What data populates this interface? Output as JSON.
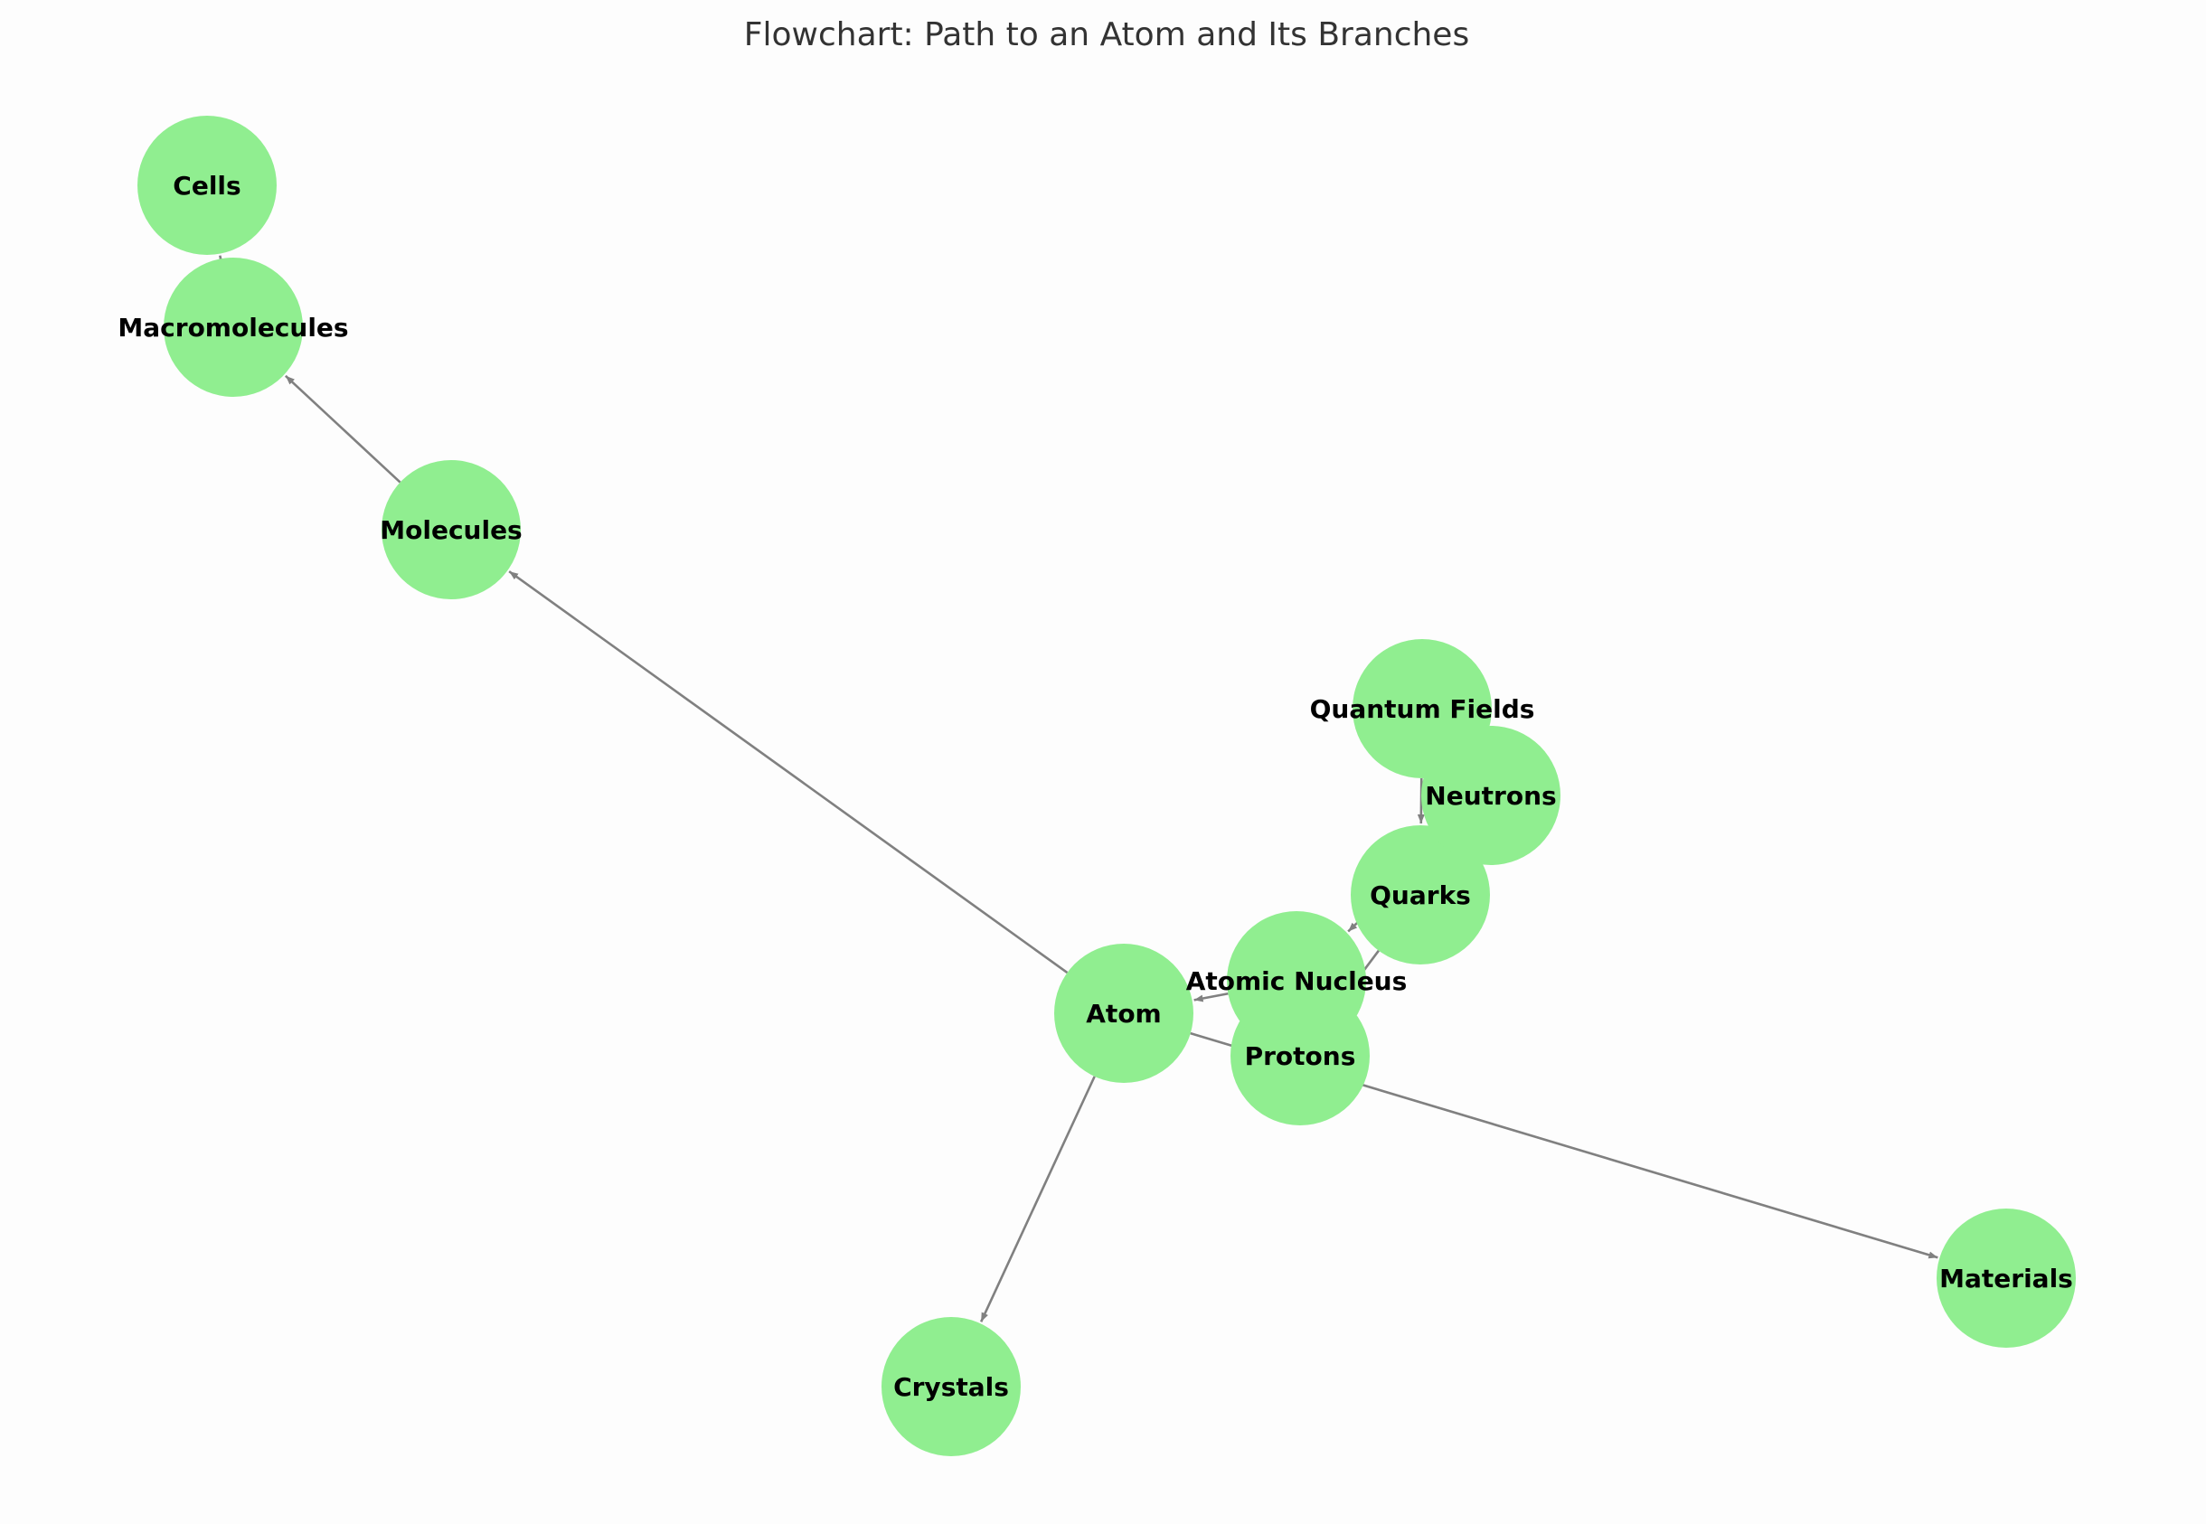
{
  "title": "Flowchart: Path to an Atom and Its Branches",
  "colors": {
    "node_fill": "#90ee90",
    "edge": "#808080",
    "label": "#000000",
    "title": "#333333",
    "background": "#fdfdfd"
  },
  "nodes": [
    {
      "id": "quantum_fields",
      "label": "Quantum Fields"
    },
    {
      "id": "quarks",
      "label": "Quarks"
    },
    {
      "id": "protons",
      "label": "Protons"
    },
    {
      "id": "neutrons",
      "label": "Neutrons"
    },
    {
      "id": "atomic_nucleus",
      "label": "Atomic Nucleus"
    },
    {
      "id": "atom",
      "label": "Atom"
    },
    {
      "id": "molecules",
      "label": "Molecules"
    },
    {
      "id": "macromolecules",
      "label": "Macromolecules"
    },
    {
      "id": "cells",
      "label": "Cells"
    },
    {
      "id": "crystals",
      "label": "Crystals"
    },
    {
      "id": "materials",
      "label": "Materials"
    }
  ],
  "edges": [
    {
      "from": "quantum_fields",
      "to": "quarks"
    },
    {
      "from": "quarks",
      "to": "protons"
    },
    {
      "from": "quarks",
      "to": "neutrons"
    },
    {
      "from": "protons",
      "to": "atomic_nucleus"
    },
    {
      "from": "neutrons",
      "to": "atomic_nucleus"
    },
    {
      "from": "atomic_nucleus",
      "to": "atom"
    },
    {
      "from": "atom",
      "to": "molecules"
    },
    {
      "from": "molecules",
      "to": "macromolecules"
    },
    {
      "from": "macromolecules",
      "to": "cells"
    },
    {
      "from": "atom",
      "to": "crystals"
    },
    {
      "from": "atom",
      "to": "materials"
    }
  ]
}
